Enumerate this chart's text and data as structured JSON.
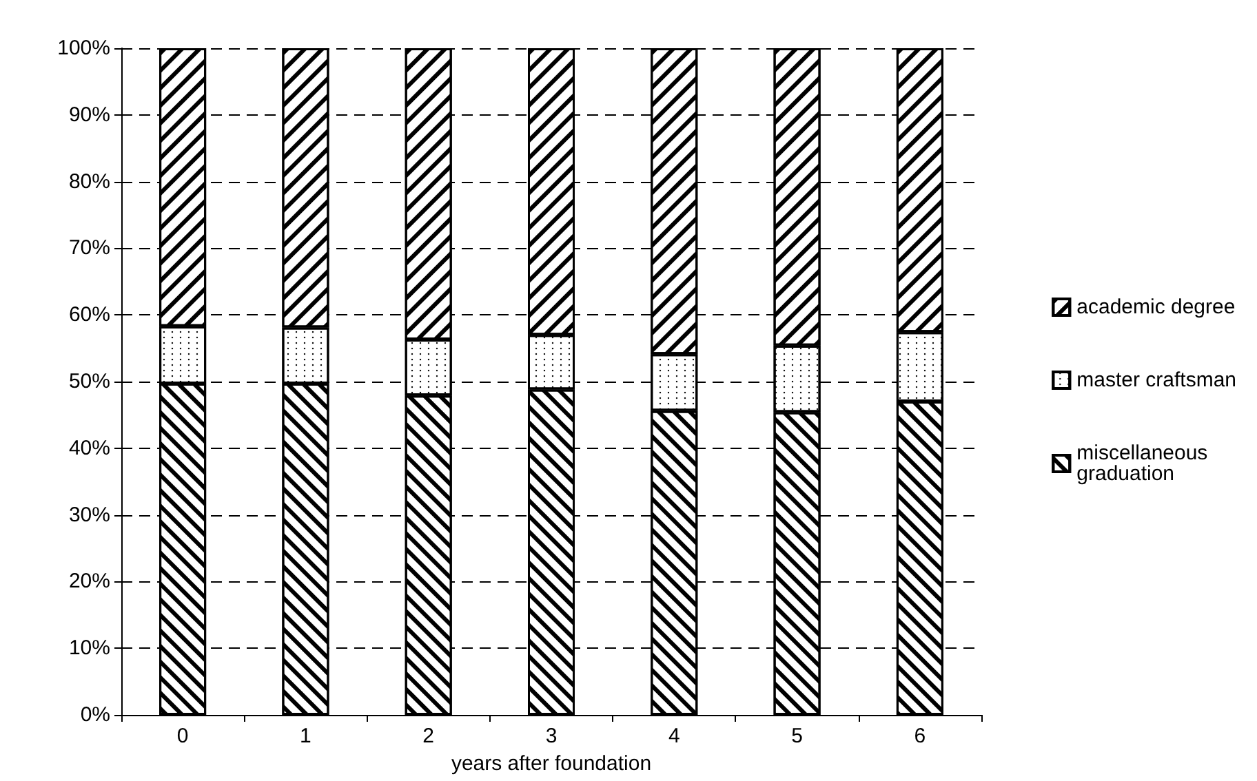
{
  "chart_data": {
    "type": "bar",
    "stacked": true,
    "xlabel": "years after foundation",
    "categories": [
      "0",
      "1",
      "2",
      "3",
      "4",
      "5",
      "6"
    ],
    "series": [
      {
        "name": "miscellaneous graduation",
        "color": "#000000",
        "values": [
          49.7,
          49.7,
          47.9,
          48.8,
          45.6,
          45.4,
          47.0
        ]
      },
      {
        "name": "master craftsman",
        "color": "#000000",
        "values": [
          8.6,
          8.4,
          8.4,
          8.2,
          8.5,
          10.0,
          10.4
        ]
      },
      {
        "name": "academic degree",
        "color": "#000000",
        "values": [
          41.7,
          41.9,
          43.7,
          43.0,
          45.9,
          44.6,
          42.6
        ]
      }
    ],
    "ylim": [
      0,
      100
    ],
    "yticks": [
      {
        "value": 0,
        "label": "0%"
      },
      {
        "value": 10,
        "label": "10%"
      },
      {
        "value": 20,
        "label": "20%"
      },
      {
        "value": 30,
        "label": "30%"
      },
      {
        "value": 40,
        "label": "40%"
      },
      {
        "value": 50,
        "label": "50%"
      },
      {
        "value": 60,
        "label": "60%"
      },
      {
        "value": 70,
        "label": "70%"
      },
      {
        "value": 80,
        "label": "80%"
      },
      {
        "value": 90,
        "label": "90%"
      },
      {
        "value": 100,
        "label": "100%"
      }
    ],
    "grid": "y",
    "legend": "right"
  }
}
